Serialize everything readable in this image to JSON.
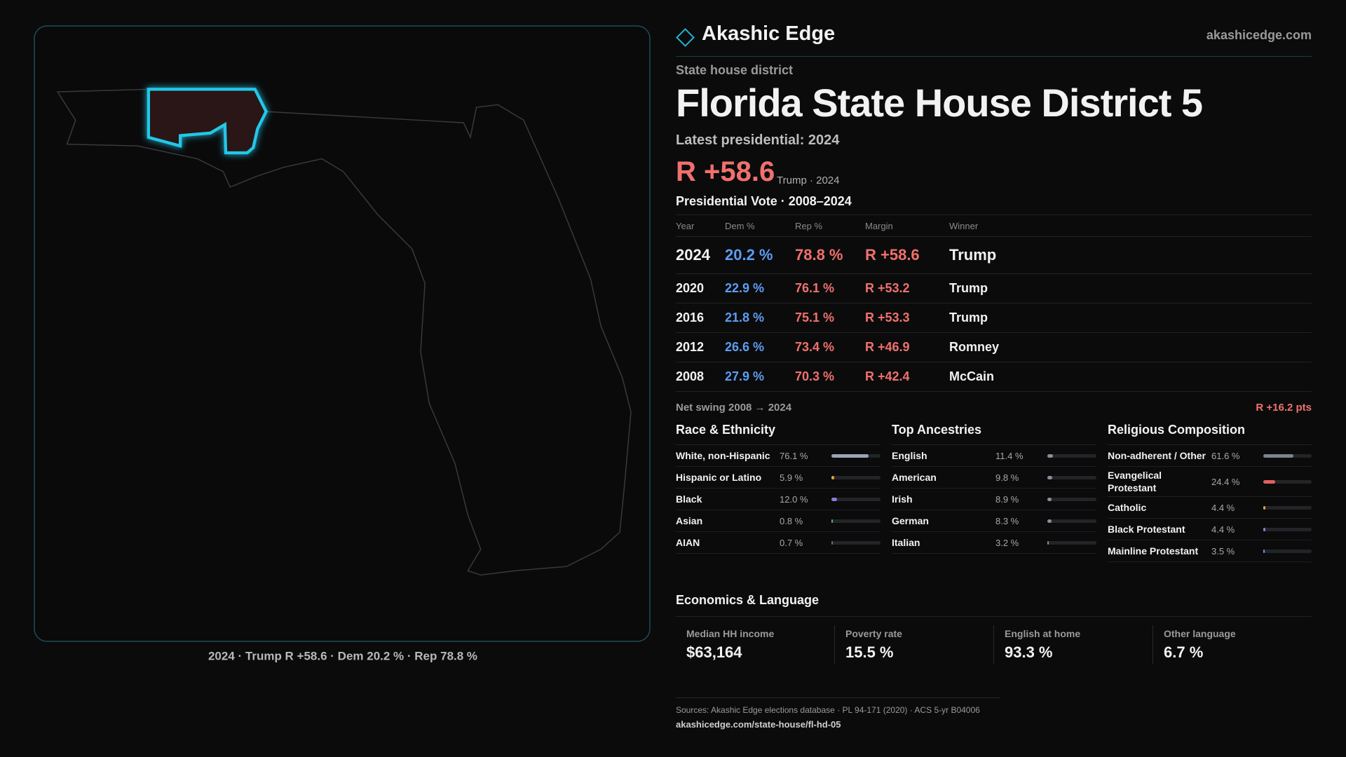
{
  "brand": {
    "name": "Akashic Edge",
    "site": "akashicedge.com"
  },
  "header": {
    "kicker": "State house district",
    "title": "Florida State House District 5",
    "latest": "Latest presidential: 2024",
    "margin": "R +58.6",
    "margin_note": "Trump · 2024"
  },
  "map_caption": "2024 · Trump R +58.6 · Dem 20.2 % · Rep 78.8 %",
  "vote_table": {
    "title": "Presidential Vote · 2008–2024",
    "columns": [
      "Year",
      "Dem %",
      "Rep %",
      "Margin",
      "Winner"
    ],
    "rows": [
      [
        "2024",
        "20.2 %",
        "78.8 %",
        "R +58.6",
        "Trump"
      ],
      [
        "2020",
        "22.9 %",
        "76.1 %",
        "R +53.2",
        "Trump"
      ],
      [
        "2016",
        "21.8 %",
        "75.1 %",
        "R +53.3",
        "Trump"
      ],
      [
        "2012",
        "26.6 %",
        "73.4 %",
        "R +46.9",
        "Romney"
      ],
      [
        "2008",
        "27.9 %",
        "70.3 %",
        "R +42.4",
        "McCain"
      ]
    ]
  },
  "net_swing": {
    "label": "Net swing 2008 → 2024",
    "value": "R +16.2 pts"
  },
  "race": {
    "title": "Race & Ethnicity",
    "items": [
      {
        "label": "White, non-Hispanic",
        "value": 76.1,
        "value_label": "76.1 %",
        "color": "#9ba4b6"
      },
      {
        "label": "Hispanic or Latino",
        "value": 5.9,
        "value_label": "5.9 %",
        "color": "#e0a33a"
      },
      {
        "label": "Black",
        "value": 12.0,
        "value_label": "12.0 %",
        "color": "#8b7be0"
      },
      {
        "label": "Asian",
        "value": 0.8,
        "value_label": "0.8 %",
        "color": "#4fb37a"
      },
      {
        "label": "AIAN",
        "value": 0.7,
        "value_label": "0.7 %",
        "color": "#6b6f78"
      }
    ]
  },
  "ancestry": {
    "title": "Top Ancestries",
    "items": [
      {
        "label": "English",
        "value": 11.4,
        "value_label": "11.4 %",
        "color": "#8a8f9a"
      },
      {
        "label": "American",
        "value": 9.8,
        "value_label": "9.8 %",
        "color": "#8a8f9a"
      },
      {
        "label": "Irish",
        "value": 8.9,
        "value_label": "8.9 %",
        "color": "#8a8f9a"
      },
      {
        "label": "German",
        "value": 8.3,
        "value_label": "8.3 %",
        "color": "#8a8f9a"
      },
      {
        "label": "Italian",
        "value": 3.2,
        "value_label": "3.2 %",
        "color": "#8a8f9a"
      }
    ]
  },
  "religion": {
    "title": "Religious Composition",
    "items": [
      {
        "label": "Non-adherent / Other",
        "value": 61.6,
        "value_label": "61.6 %",
        "color": "#7d828d"
      },
      {
        "label": "Evangelical Protestant",
        "value": 24.4,
        "value_label": "24.4 %",
        "color": "#e0605c"
      },
      {
        "label": "Catholic",
        "value": 4.4,
        "value_label": "4.4 %",
        "color": "#e0a33a"
      },
      {
        "label": "Black Protestant",
        "value": 4.4,
        "value_label": "4.4 %",
        "color": "#8b7be0"
      },
      {
        "label": "Mainline Protestant",
        "value": 3.5,
        "value_label": "3.5 %",
        "color": "#5d9df3"
      }
    ]
  },
  "economics": {
    "title": "Economics & Language",
    "items": [
      {
        "label": "Median HH income",
        "value": "$63,164"
      },
      {
        "label": "Poverty rate",
        "value": "15.5 %"
      },
      {
        "label": "English at home",
        "value": "93.3 %"
      },
      {
        "label": "Other language",
        "value": "6.7 %"
      }
    ]
  },
  "footer": {
    "sources": "Sources: Akashic Edge elections database · PL 94-171 (2020) · ACS 5-yr B04006",
    "url": "akashicedge.com/state-house/fl-hd-05"
  }
}
